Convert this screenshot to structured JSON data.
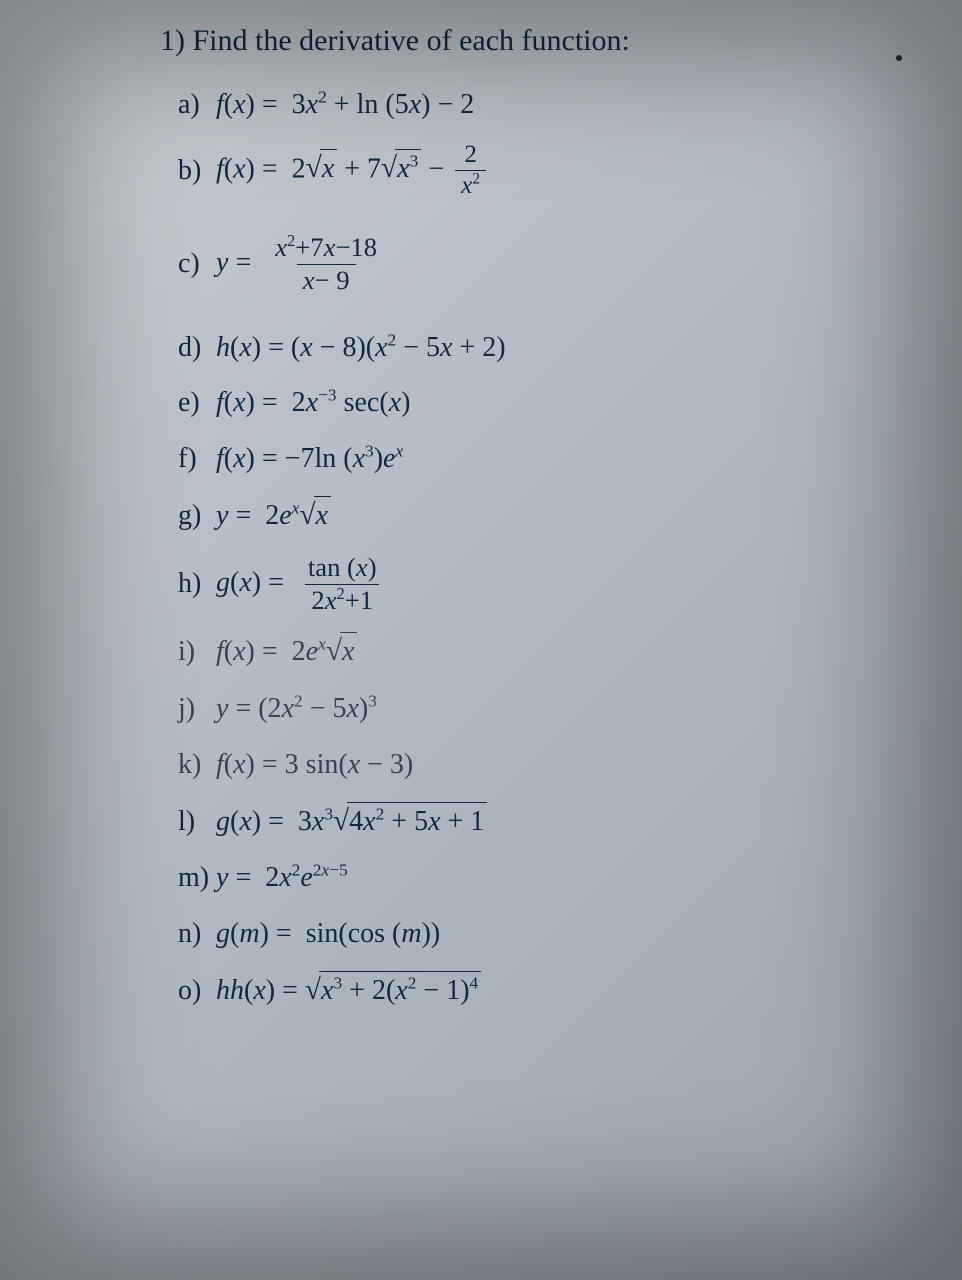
{
  "title": "1) Find the derivative of each function:",
  "colors": {
    "text": "#102840",
    "bg_gradient_from": "#c8cdd2",
    "bg_gradient_to": "#9aa2ab"
  },
  "typography": {
    "family": "Times New Roman / serif",
    "title_fontsize_pt": 22,
    "item_fontsize_pt": 21,
    "superscript_scale": 0.62
  },
  "items": [
    {
      "label": "a)",
      "expr_plain": "f(x) = 3x^2 + ln(5x) − 2"
    },
    {
      "label": "b)",
      "expr_plain": "f(x) = 2√x + 7√(x^3) − 2/x^2"
    },
    {
      "label": "c)",
      "expr_plain": "y = (x^2 + 7x − 18) / (x − 9)"
    },
    {
      "label": "d)",
      "expr_plain": "h(x) = (x − 8)(x^2 − 5x + 2)"
    },
    {
      "label": "e)",
      "expr_plain": "f(x) = 2x^(−3) sec(x)"
    },
    {
      "label": "f)",
      "expr_plain": "f(x) = −7 ln(x^3) e^x"
    },
    {
      "label": "g)",
      "expr_plain": "y = 2 e^x √x"
    },
    {
      "label": "h)",
      "expr_plain": "g(x) = tan(x) / (2x^2 + 1)"
    },
    {
      "label": "i)",
      "expr_plain": "f(x) = 2 e^x √x"
    },
    {
      "label": "j)",
      "expr_plain": "y = (2x^2 − 5x)^3"
    },
    {
      "label": "k)",
      "expr_plain": "f(x) = 3 sin(x − 3)"
    },
    {
      "label": "l)",
      "expr_plain": "g(x) = 3x^3 √(4x^2 + 5x + 1)"
    },
    {
      "label": "m)",
      "expr_plain": "y = 2x^2 e^(2x − 5)"
    },
    {
      "label": "n)",
      "expr_plain": "g(m) = sin(cos(m))"
    },
    {
      "label": "o)",
      "expr_plain": "hh(x) = √(x^3 + 2(x^2 − 1)^4)"
    }
  ],
  "labels": {
    "a": "a)",
    "b": "b)",
    "c": "c)",
    "d": "d)",
    "e": "e)",
    "f": "f)",
    "g": "g)",
    "h": "h)",
    "i": "i)",
    "j": "j)",
    "k": "k)",
    "l": "l)",
    "m": "m)",
    "n": "n)",
    "o": "o)"
  },
  "strings": {
    "tan": "tan",
    "ln": "ln",
    "sec": "sec",
    "sin": "sin",
    "cos": "cos"
  }
}
